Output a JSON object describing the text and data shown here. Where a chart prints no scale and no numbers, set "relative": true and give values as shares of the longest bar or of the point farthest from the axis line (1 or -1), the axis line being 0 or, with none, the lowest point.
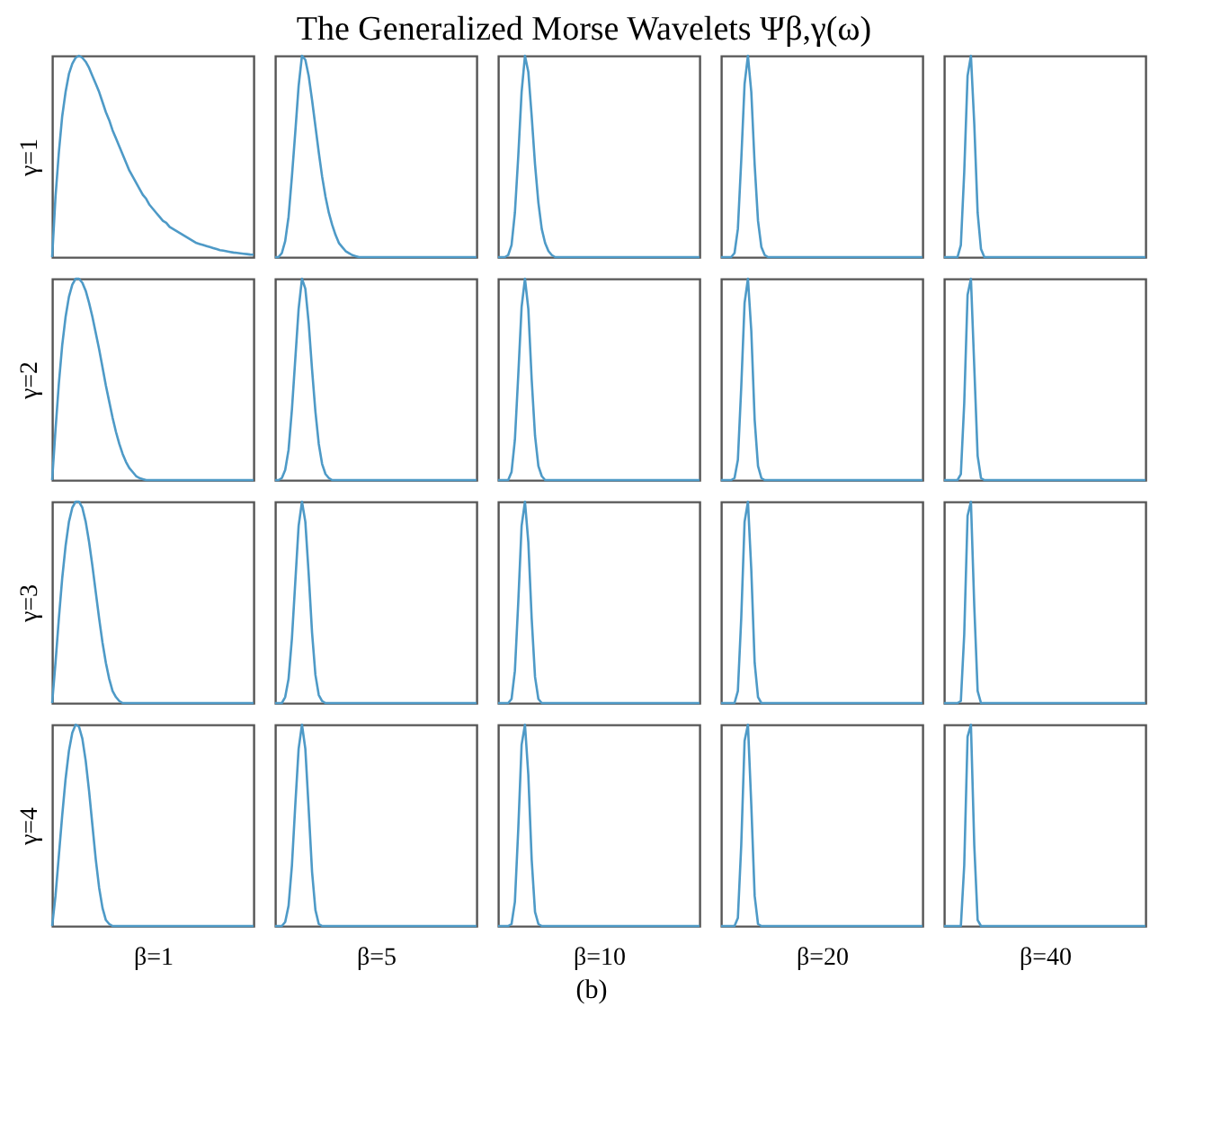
{
  "chart_data": [
    {
      "type": "line",
      "ylabel": "γ=1",
      "relative": true,
      "tick_labels": false,
      "color": "#4e9ac7",
      "categories": [
        null,
        null,
        null,
        null,
        null,
        null,
        null,
        null,
        null,
        null,
        null,
        null,
        null,
        null,
        null,
        null,
        null,
        null,
        null,
        null,
        null,
        null,
        null,
        null,
        null,
        null,
        null,
        null,
        null,
        null,
        null,
        null,
        null,
        null,
        null,
        null,
        null,
        null,
        null,
        null,
        null,
        null,
        null,
        null,
        null,
        null,
        null,
        null,
        null,
        null,
        null,
        null,
        null,
        null,
        null,
        null,
        null,
        null,
        null,
        null,
        null
      ],
      "values": [
        0,
        0.3,
        0.52,
        0.7,
        0.82,
        0.91,
        0.96,
        0.99,
        1,
        0.99,
        0.97,
        0.94,
        0.9,
        0.86,
        0.82,
        0.77,
        0.72,
        0.68,
        0.63,
        0.59,
        0.55,
        0.51,
        0.47,
        0.43,
        0.4,
        0.37,
        0.34,
        0.31,
        0.29,
        0.26,
        0.24,
        0.22,
        0.2,
        0.18,
        0.17,
        0.15,
        0.14,
        0.13,
        0.12,
        0.11,
        0.1,
        0.09,
        0.08,
        0.07,
        0.065,
        0.06,
        0.055,
        0.05,
        0.045,
        0.04,
        0.035,
        0.032,
        0.029,
        0.026,
        0.023,
        0.021,
        0.019,
        0.017,
        0.015,
        0.013,
        0.012
      ]
    },
    {
      "type": "line",
      "relative": true,
      "tick_labels": false,
      "color": "#4e9ac7",
      "categories": [
        null,
        null,
        null,
        null,
        null,
        null,
        null,
        null,
        null,
        null,
        null,
        null,
        null,
        null,
        null,
        null,
        null,
        null,
        null,
        null,
        null,
        null,
        null,
        null,
        null,
        null,
        null,
        null,
        null,
        null,
        null,
        null,
        null,
        null,
        null,
        null,
        null,
        null,
        null,
        null,
        null,
        null,
        null,
        null,
        null,
        null,
        null,
        null,
        null,
        null,
        null,
        null,
        null,
        null,
        null,
        null,
        null,
        null,
        null,
        null,
        null
      ],
      "values": [
        0,
        0,
        0.02,
        0.08,
        0.2,
        0.4,
        0.62,
        0.85,
        1,
        0.98,
        0.9,
        0.78,
        0.65,
        0.52,
        0.4,
        0.3,
        0.22,
        0.16,
        0.11,
        0.07,
        0.05,
        0.03,
        0.02,
        0.01,
        0.005,
        0,
        0,
        0,
        0,
        0,
        0,
        0,
        0,
        0,
        0,
        0,
        0,
        0,
        0,
        0,
        0,
        0,
        0,
        0,
        0,
        0,
        0,
        0,
        0,
        0,
        0,
        0,
        0,
        0,
        0,
        0,
        0,
        0,
        0,
        0,
        0
      ]
    },
    {
      "type": "line",
      "title": "The Generalized Morse Wavelets Ψβ,γ(ω)",
      "relative": true,
      "tick_labels": false,
      "color": "#4e9ac7",
      "categories": [
        null,
        null,
        null,
        null,
        null,
        null,
        null,
        null,
        null,
        null,
        null,
        null,
        null,
        null,
        null,
        null,
        null,
        null,
        null,
        null,
        null,
        null,
        null,
        null,
        null,
        null,
        null,
        null,
        null,
        null,
        null,
        null,
        null,
        null,
        null,
        null,
        null,
        null,
        null,
        null,
        null,
        null,
        null,
        null,
        null,
        null,
        null,
        null,
        null,
        null,
        null,
        null,
        null,
        null,
        null,
        null,
        null,
        null,
        null,
        null,
        null
      ],
      "values": [
        0,
        0,
        0,
        0.01,
        0.06,
        0.22,
        0.5,
        0.82,
        1,
        0.92,
        0.7,
        0.46,
        0.27,
        0.14,
        0.07,
        0.03,
        0.01,
        0,
        0,
        0,
        0,
        0,
        0,
        0,
        0,
        0,
        0,
        0,
        0,
        0,
        0,
        0,
        0,
        0,
        0,
        0,
        0,
        0,
        0,
        0,
        0,
        0,
        0,
        0,
        0,
        0,
        0,
        0,
        0,
        0,
        0,
        0,
        0,
        0,
        0,
        0,
        0,
        0,
        0,
        0,
        0
      ]
    },
    {
      "type": "line",
      "relative": true,
      "tick_labels": false,
      "color": "#4e9ac7",
      "categories": [
        null,
        null,
        null,
        null,
        null,
        null,
        null,
        null,
        null,
        null,
        null,
        null,
        null,
        null,
        null,
        null,
        null,
        null,
        null,
        null,
        null,
        null,
        null,
        null,
        null,
        null,
        null,
        null,
        null,
        null,
        null,
        null,
        null,
        null,
        null,
        null,
        null,
        null,
        null,
        null,
        null,
        null,
        null,
        null,
        null,
        null,
        null,
        null,
        null,
        null,
        null,
        null,
        null,
        null,
        null,
        null,
        null,
        null,
        null,
        null,
        null
      ],
      "values": [
        0,
        0,
        0,
        0,
        0.02,
        0.14,
        0.48,
        0.86,
        1,
        0.82,
        0.46,
        0.18,
        0.05,
        0.01,
        0,
        0,
        0,
        0,
        0,
        0,
        0,
        0,
        0,
        0,
        0,
        0,
        0,
        0,
        0,
        0,
        0,
        0,
        0,
        0,
        0,
        0,
        0,
        0,
        0,
        0,
        0,
        0,
        0,
        0,
        0,
        0,
        0,
        0,
        0,
        0,
        0,
        0,
        0,
        0,
        0,
        0,
        0,
        0,
        0,
        0,
        0
      ]
    },
    {
      "type": "line",
      "relative": true,
      "tick_labels": false,
      "color": "#4e9ac7",
      "categories": [
        null,
        null,
        null,
        null,
        null,
        null,
        null,
        null,
        null,
        null,
        null,
        null,
        null,
        null,
        null,
        null,
        null,
        null,
        null,
        null,
        null,
        null,
        null,
        null,
        null,
        null,
        null,
        null,
        null,
        null,
        null,
        null,
        null,
        null,
        null,
        null,
        null,
        null,
        null,
        null,
        null,
        null,
        null,
        null,
        null,
        null,
        null,
        null,
        null,
        null,
        null,
        null,
        null,
        null,
        null,
        null,
        null,
        null,
        null,
        null,
        null
      ],
      "values": [
        0,
        0,
        0,
        0,
        0,
        0.06,
        0.42,
        0.9,
        1,
        0.66,
        0.22,
        0.04,
        0,
        0,
        0,
        0,
        0,
        0,
        0,
        0,
        0,
        0,
        0,
        0,
        0,
        0,
        0,
        0,
        0,
        0,
        0,
        0,
        0,
        0,
        0,
        0,
        0,
        0,
        0,
        0,
        0,
        0,
        0,
        0,
        0,
        0,
        0,
        0,
        0,
        0,
        0,
        0,
        0,
        0,
        0,
        0,
        0,
        0,
        0,
        0,
        0
      ]
    },
    {
      "type": "line",
      "ylabel": "γ=2",
      "relative": true,
      "tick_labels": false,
      "color": "#4e9ac7",
      "categories": [
        null,
        null,
        null,
        null,
        null,
        null,
        null,
        null,
        null,
        null,
        null,
        null,
        null,
        null,
        null,
        null,
        null,
        null,
        null,
        null,
        null,
        null,
        null,
        null,
        null,
        null,
        null,
        null,
        null,
        null,
        null,
        null,
        null,
        null,
        null,
        null,
        null,
        null,
        null,
        null,
        null,
        null,
        null,
        null,
        null,
        null,
        null,
        null,
        null,
        null,
        null,
        null,
        null,
        null,
        null,
        null,
        null,
        null,
        null,
        null,
        null
      ],
      "values": [
        0,
        0.25,
        0.48,
        0.67,
        0.81,
        0.91,
        0.97,
        1,
        1,
        0.98,
        0.94,
        0.88,
        0.81,
        0.73,
        0.65,
        0.56,
        0.47,
        0.39,
        0.31,
        0.24,
        0.18,
        0.13,
        0.09,
        0.06,
        0.04,
        0.02,
        0.01,
        0.005,
        0,
        0,
        0,
        0,
        0,
        0,
        0,
        0,
        0,
        0,
        0,
        0,
        0,
        0,
        0,
        0,
        0,
        0,
        0,
        0,
        0,
        0,
        0,
        0,
        0,
        0,
        0,
        0,
        0,
        0,
        0,
        0,
        0
      ]
    },
    {
      "type": "line",
      "relative": true,
      "tick_labels": false,
      "color": "#4e9ac7",
      "categories": [
        null,
        null,
        null,
        null,
        null,
        null,
        null,
        null,
        null,
        null,
        null,
        null,
        null,
        null,
        null,
        null,
        null,
        null,
        null,
        null,
        null,
        null,
        null,
        null,
        null,
        null,
        null,
        null,
        null,
        null,
        null,
        null,
        null,
        null,
        null,
        null,
        null,
        null,
        null,
        null,
        null,
        null,
        null,
        null,
        null,
        null,
        null,
        null,
        null,
        null,
        null,
        null,
        null,
        null,
        null,
        null,
        null,
        null,
        null,
        null,
        null
      ],
      "values": [
        0,
        0,
        0.01,
        0.05,
        0.15,
        0.35,
        0.6,
        0.85,
        1,
        0.95,
        0.78,
        0.55,
        0.34,
        0.18,
        0.08,
        0.03,
        0.01,
        0,
        0,
        0,
        0,
        0,
        0,
        0,
        0,
        0,
        0,
        0,
        0,
        0,
        0,
        0,
        0,
        0,
        0,
        0,
        0,
        0,
        0,
        0,
        0,
        0,
        0,
        0,
        0,
        0,
        0,
        0,
        0,
        0,
        0,
        0,
        0,
        0,
        0,
        0,
        0,
        0,
        0,
        0,
        0
      ]
    },
    {
      "type": "line",
      "relative": true,
      "tick_labels": false,
      "color": "#4e9ac7",
      "categories": [
        null,
        null,
        null,
        null,
        null,
        null,
        null,
        null,
        null,
        null,
        null,
        null,
        null,
        null,
        null,
        null,
        null,
        null,
        null,
        null,
        null,
        null,
        null,
        null,
        null,
        null,
        null,
        null,
        null,
        null,
        null,
        null,
        null,
        null,
        null,
        null,
        null,
        null,
        null,
        null,
        null,
        null,
        null,
        null,
        null,
        null,
        null,
        null,
        null,
        null,
        null,
        null,
        null,
        null,
        null,
        null,
        null,
        null,
        null,
        null,
        null
      ],
      "values": [
        0,
        0,
        0,
        0,
        0.04,
        0.2,
        0.52,
        0.86,
        1,
        0.85,
        0.5,
        0.22,
        0.07,
        0.02,
        0,
        0,
        0,
        0,
        0,
        0,
        0,
        0,
        0,
        0,
        0,
        0,
        0,
        0,
        0,
        0,
        0,
        0,
        0,
        0,
        0,
        0,
        0,
        0,
        0,
        0,
        0,
        0,
        0,
        0,
        0,
        0,
        0,
        0,
        0,
        0,
        0,
        0,
        0,
        0,
        0,
        0,
        0,
        0,
        0,
        0,
        0
      ]
    },
    {
      "type": "line",
      "relative": true,
      "tick_labels": false,
      "color": "#4e9ac7",
      "categories": [
        null,
        null,
        null,
        null,
        null,
        null,
        null,
        null,
        null,
        null,
        null,
        null,
        null,
        null,
        null,
        null,
        null,
        null,
        null,
        null,
        null,
        null,
        null,
        null,
        null,
        null,
        null,
        null,
        null,
        null,
        null,
        null,
        null,
        null,
        null,
        null,
        null,
        null,
        null,
        null,
        null,
        null,
        null,
        null,
        null,
        null,
        null,
        null,
        null,
        null,
        null,
        null,
        null,
        null,
        null,
        null,
        null,
        null,
        null,
        null,
        null
      ],
      "values": [
        0,
        0,
        0,
        0,
        0.01,
        0.1,
        0.46,
        0.88,
        1,
        0.74,
        0.3,
        0.07,
        0.01,
        0,
        0,
        0,
        0,
        0,
        0,
        0,
        0,
        0,
        0,
        0,
        0,
        0,
        0,
        0,
        0,
        0,
        0,
        0,
        0,
        0,
        0,
        0,
        0,
        0,
        0,
        0,
        0,
        0,
        0,
        0,
        0,
        0,
        0,
        0,
        0,
        0,
        0,
        0,
        0,
        0,
        0,
        0,
        0,
        0,
        0,
        0,
        0
      ]
    },
    {
      "type": "line",
      "relative": true,
      "tick_labels": false,
      "color": "#4e9ac7",
      "categories": [
        null,
        null,
        null,
        null,
        null,
        null,
        null,
        null,
        null,
        null,
        null,
        null,
        null,
        null,
        null,
        null,
        null,
        null,
        null,
        null,
        null,
        null,
        null,
        null,
        null,
        null,
        null,
        null,
        null,
        null,
        null,
        null,
        null,
        null,
        null,
        null,
        null,
        null,
        null,
        null,
        null,
        null,
        null,
        null,
        null,
        null,
        null,
        null,
        null,
        null,
        null,
        null,
        null,
        null,
        null,
        null,
        null,
        null,
        null,
        null,
        null
      ],
      "values": [
        0,
        0,
        0,
        0,
        0,
        0.03,
        0.38,
        0.92,
        1,
        0.56,
        0.12,
        0.01,
        0,
        0,
        0,
        0,
        0,
        0,
        0,
        0,
        0,
        0,
        0,
        0,
        0,
        0,
        0,
        0,
        0,
        0,
        0,
        0,
        0,
        0,
        0,
        0,
        0,
        0,
        0,
        0,
        0,
        0,
        0,
        0,
        0,
        0,
        0,
        0,
        0,
        0,
        0,
        0,
        0,
        0,
        0,
        0,
        0,
        0,
        0,
        0,
        0
      ]
    },
    {
      "type": "line",
      "ylabel": "γ=3",
      "relative": true,
      "tick_labels": false,
      "color": "#4e9ac7",
      "categories": [
        null,
        null,
        null,
        null,
        null,
        null,
        null,
        null,
        null,
        null,
        null,
        null,
        null,
        null,
        null,
        null,
        null,
        null,
        null,
        null,
        null,
        null,
        null,
        null,
        null,
        null,
        null,
        null,
        null,
        null,
        null,
        null,
        null,
        null,
        null,
        null,
        null,
        null,
        null,
        null,
        null,
        null,
        null,
        null,
        null,
        null,
        null,
        null,
        null,
        null,
        null,
        null,
        null,
        null,
        null,
        null,
        null,
        null,
        null,
        null,
        null
      ],
      "values": [
        0,
        0.2,
        0.42,
        0.62,
        0.78,
        0.9,
        0.97,
        1,
        1,
        0.97,
        0.9,
        0.8,
        0.68,
        0.55,
        0.42,
        0.3,
        0.2,
        0.12,
        0.06,
        0.03,
        0.01,
        0,
        0,
        0,
        0,
        0,
        0,
        0,
        0,
        0,
        0,
        0,
        0,
        0,
        0,
        0,
        0,
        0,
        0,
        0,
        0,
        0,
        0,
        0,
        0,
        0,
        0,
        0,
        0,
        0,
        0,
        0,
        0,
        0,
        0,
        0,
        0,
        0,
        0,
        0,
        0
      ]
    },
    {
      "type": "line",
      "relative": true,
      "tick_labels": false,
      "color": "#4e9ac7",
      "categories": [
        null,
        null,
        null,
        null,
        null,
        null,
        null,
        null,
        null,
        null,
        null,
        null,
        null,
        null,
        null,
        null,
        null,
        null,
        null,
        null,
        null,
        null,
        null,
        null,
        null,
        null,
        null,
        null,
        null,
        null,
        null,
        null,
        null,
        null,
        null,
        null,
        null,
        null,
        null,
        null,
        null,
        null,
        null,
        null,
        null,
        null,
        null,
        null,
        null,
        null,
        null,
        null,
        null,
        null,
        null,
        null,
        null,
        null,
        null,
        null,
        null
      ],
      "values": [
        0,
        0,
        0,
        0.03,
        0.12,
        0.32,
        0.6,
        0.88,
        1,
        0.9,
        0.64,
        0.35,
        0.14,
        0.04,
        0.01,
        0,
        0,
        0,
        0,
        0,
        0,
        0,
        0,
        0,
        0,
        0,
        0,
        0,
        0,
        0,
        0,
        0,
        0,
        0,
        0,
        0,
        0,
        0,
        0,
        0,
        0,
        0,
        0,
        0,
        0,
        0,
        0,
        0,
        0,
        0,
        0,
        0,
        0,
        0,
        0,
        0,
        0,
        0,
        0,
        0,
        0
      ]
    },
    {
      "type": "line",
      "relative": true,
      "tick_labels": false,
      "color": "#4e9ac7",
      "categories": [
        null,
        null,
        null,
        null,
        null,
        null,
        null,
        null,
        null,
        null,
        null,
        null,
        null,
        null,
        null,
        null,
        null,
        null,
        null,
        null,
        null,
        null,
        null,
        null,
        null,
        null,
        null,
        null,
        null,
        null,
        null,
        null,
        null,
        null,
        null,
        null,
        null,
        null,
        null,
        null,
        null,
        null,
        null,
        null,
        null,
        null,
        null,
        null,
        null,
        null,
        null,
        null,
        null,
        null,
        null,
        null,
        null,
        null,
        null,
        null,
        null
      ],
      "values": [
        0,
        0,
        0,
        0,
        0.02,
        0.16,
        0.5,
        0.88,
        1,
        0.8,
        0.42,
        0.13,
        0.02,
        0,
        0,
        0,
        0,
        0,
        0,
        0,
        0,
        0,
        0,
        0,
        0,
        0,
        0,
        0,
        0,
        0,
        0,
        0,
        0,
        0,
        0,
        0,
        0,
        0,
        0,
        0,
        0,
        0,
        0,
        0,
        0,
        0,
        0,
        0,
        0,
        0,
        0,
        0,
        0,
        0,
        0,
        0,
        0,
        0,
        0,
        0,
        0
      ]
    },
    {
      "type": "line",
      "relative": true,
      "tick_labels": false,
      "color": "#4e9ac7",
      "categories": [
        null,
        null,
        null,
        null,
        null,
        null,
        null,
        null,
        null,
        null,
        null,
        null,
        null,
        null,
        null,
        null,
        null,
        null,
        null,
        null,
        null,
        null,
        null,
        null,
        null,
        null,
        null,
        null,
        null,
        null,
        null,
        null,
        null,
        null,
        null,
        null,
        null,
        null,
        null,
        null,
        null,
        null,
        null,
        null,
        null,
        null,
        null,
        null,
        null,
        null,
        null,
        null,
        null,
        null,
        null,
        null,
        null,
        null,
        null,
        null,
        null
      ],
      "values": [
        0,
        0,
        0,
        0,
        0,
        0.06,
        0.42,
        0.9,
        1,
        0.66,
        0.2,
        0.03,
        0,
        0,
        0,
        0,
        0,
        0,
        0,
        0,
        0,
        0,
        0,
        0,
        0,
        0,
        0,
        0,
        0,
        0,
        0,
        0,
        0,
        0,
        0,
        0,
        0,
        0,
        0,
        0,
        0,
        0,
        0,
        0,
        0,
        0,
        0,
        0,
        0,
        0,
        0,
        0,
        0,
        0,
        0,
        0,
        0,
        0,
        0,
        0,
        0
      ]
    },
    {
      "type": "line",
      "relative": true,
      "tick_labels": false,
      "color": "#4e9ac7",
      "categories": [
        null,
        null,
        null,
        null,
        null,
        null,
        null,
        null,
        null,
        null,
        null,
        null,
        null,
        null,
        null,
        null,
        null,
        null,
        null,
        null,
        null,
        null,
        null,
        null,
        null,
        null,
        null,
        null,
        null,
        null,
        null,
        null,
        null,
        null,
        null,
        null,
        null,
        null,
        null,
        null,
        null,
        null,
        null,
        null,
        null,
        null,
        null,
        null,
        null,
        null,
        null,
        null,
        null,
        null,
        null,
        null,
        null,
        null,
        null,
        null,
        null
      ],
      "values": [
        0,
        0,
        0,
        0,
        0,
        0.01,
        0.34,
        0.93,
        1,
        0.48,
        0.06,
        0,
        0,
        0,
        0,
        0,
        0,
        0,
        0,
        0,
        0,
        0,
        0,
        0,
        0,
        0,
        0,
        0,
        0,
        0,
        0,
        0,
        0,
        0,
        0,
        0,
        0,
        0,
        0,
        0,
        0,
        0,
        0,
        0,
        0,
        0,
        0,
        0,
        0,
        0,
        0,
        0,
        0,
        0,
        0,
        0,
        0,
        0,
        0,
        0,
        0
      ]
    },
    {
      "type": "line",
      "ylabel": "γ=4",
      "xlabel": "β=1",
      "relative": true,
      "tick_labels": false,
      "color": "#4e9ac7",
      "categories": [
        null,
        null,
        null,
        null,
        null,
        null,
        null,
        null,
        null,
        null,
        null,
        null,
        null,
        null,
        null,
        null,
        null,
        null,
        null,
        null,
        null,
        null,
        null,
        null,
        null,
        null,
        null,
        null,
        null,
        null,
        null,
        null,
        null,
        null,
        null,
        null,
        null,
        null,
        null,
        null,
        null,
        null,
        null,
        null,
        null,
        null,
        null,
        null,
        null,
        null,
        null,
        null,
        null,
        null,
        null,
        null,
        null,
        null,
        null,
        null,
        null
      ],
      "values": [
        0,
        0.15,
        0.35,
        0.55,
        0.73,
        0.87,
        0.96,
        1,
        0.99,
        0.93,
        0.82,
        0.67,
        0.5,
        0.33,
        0.19,
        0.09,
        0.03,
        0.01,
        0,
        0,
        0,
        0,
        0,
        0,
        0,
        0,
        0,
        0,
        0,
        0,
        0,
        0,
        0,
        0,
        0,
        0,
        0,
        0,
        0,
        0,
        0,
        0,
        0,
        0,
        0,
        0,
        0,
        0,
        0,
        0,
        0,
        0,
        0,
        0,
        0,
        0,
        0,
        0,
        0,
        0,
        0
      ]
    },
    {
      "type": "line",
      "xlabel": "β=5",
      "relative": true,
      "tick_labels": false,
      "color": "#4e9ac7",
      "categories": [
        null,
        null,
        null,
        null,
        null,
        null,
        null,
        null,
        null,
        null,
        null,
        null,
        null,
        null,
        null,
        null,
        null,
        null,
        null,
        null,
        null,
        null,
        null,
        null,
        null,
        null,
        null,
        null,
        null,
        null,
        null,
        null,
        null,
        null,
        null,
        null,
        null,
        null,
        null,
        null,
        null,
        null,
        null,
        null,
        null,
        null,
        null,
        null,
        null,
        null,
        null,
        null,
        null,
        null,
        null,
        null,
        null,
        null,
        null,
        null,
        null
      ],
      "values": [
        0,
        0,
        0,
        0.02,
        0.1,
        0.3,
        0.6,
        0.88,
        1,
        0.88,
        0.58,
        0.27,
        0.08,
        0.01,
        0,
        0,
        0,
        0,
        0,
        0,
        0,
        0,
        0,
        0,
        0,
        0,
        0,
        0,
        0,
        0,
        0,
        0,
        0,
        0,
        0,
        0,
        0,
        0,
        0,
        0,
        0,
        0,
        0,
        0,
        0,
        0,
        0,
        0,
        0,
        0,
        0,
        0,
        0,
        0,
        0,
        0,
        0,
        0,
        0,
        0,
        0
      ]
    },
    {
      "type": "line",
      "xlabel": "β=10",
      "relative": true,
      "tick_labels": false,
      "color": "#4e9ac7",
      "categories": [
        null,
        null,
        null,
        null,
        null,
        null,
        null,
        null,
        null,
        null,
        null,
        null,
        null,
        null,
        null,
        null,
        null,
        null,
        null,
        null,
        null,
        null,
        null,
        null,
        null,
        null,
        null,
        null,
        null,
        null,
        null,
        null,
        null,
        null,
        null,
        null,
        null,
        null,
        null,
        null,
        null,
        null,
        null,
        null,
        null,
        null,
        null,
        null,
        null,
        null,
        null,
        null,
        null,
        null,
        null,
        null,
        null,
        null,
        null,
        null,
        null
      ],
      "values": [
        0,
        0,
        0,
        0,
        0.01,
        0.12,
        0.48,
        0.9,
        1,
        0.75,
        0.33,
        0.07,
        0.01,
        0,
        0,
        0,
        0,
        0,
        0,
        0,
        0,
        0,
        0,
        0,
        0,
        0,
        0,
        0,
        0,
        0,
        0,
        0,
        0,
        0,
        0,
        0,
        0,
        0,
        0,
        0,
        0,
        0,
        0,
        0,
        0,
        0,
        0,
        0,
        0,
        0,
        0,
        0,
        0,
        0,
        0,
        0,
        0,
        0,
        0,
        0,
        0
      ]
    },
    {
      "type": "line",
      "xlabel": "β=20",
      "relative": true,
      "tick_labels": false,
      "color": "#4e9ac7",
      "categories": [
        null,
        null,
        null,
        null,
        null,
        null,
        null,
        null,
        null,
        null,
        null,
        null,
        null,
        null,
        null,
        null,
        null,
        null,
        null,
        null,
        null,
        null,
        null,
        null,
        null,
        null,
        null,
        null,
        null,
        null,
        null,
        null,
        null,
        null,
        null,
        null,
        null,
        null,
        null,
        null,
        null,
        null,
        null,
        null,
        null,
        null,
        null,
        null,
        null,
        null,
        null,
        null,
        null,
        null,
        null,
        null,
        null,
        null,
        null,
        null,
        null
      ],
      "values": [
        0,
        0,
        0,
        0,
        0,
        0.04,
        0.4,
        0.92,
        1,
        0.6,
        0.15,
        0.01,
        0,
        0,
        0,
        0,
        0,
        0,
        0,
        0,
        0,
        0,
        0,
        0,
        0,
        0,
        0,
        0,
        0,
        0,
        0,
        0,
        0,
        0,
        0,
        0,
        0,
        0,
        0,
        0,
        0,
        0,
        0,
        0,
        0,
        0,
        0,
        0,
        0,
        0,
        0,
        0,
        0,
        0,
        0,
        0,
        0,
        0,
        0,
        0,
        0
      ]
    },
    {
      "type": "line",
      "xlabel": "β=40",
      "annotations": [
        "(b)"
      ],
      "relative": true,
      "tick_labels": false,
      "color": "#4e9ac7",
      "categories": [
        null,
        null,
        null,
        null,
        null,
        null,
        null,
        null,
        null,
        null,
        null,
        null,
        null,
        null,
        null,
        null,
        null,
        null,
        null,
        null,
        null,
        null,
        null,
        null,
        null,
        null,
        null,
        null,
        null,
        null,
        null,
        null,
        null,
        null,
        null,
        null,
        null,
        null,
        null,
        null,
        null,
        null,
        null,
        null,
        null,
        null,
        null,
        null,
        null,
        null,
        null,
        null,
        null,
        null,
        null,
        null,
        null,
        null,
        null,
        null,
        null
      ],
      "values": [
        0,
        0,
        0,
        0,
        0,
        0,
        0.3,
        0.94,
        1,
        0.4,
        0.03,
        0,
        0,
        0,
        0,
        0,
        0,
        0,
        0,
        0,
        0,
        0,
        0,
        0,
        0,
        0,
        0,
        0,
        0,
        0,
        0,
        0,
        0,
        0,
        0,
        0,
        0,
        0,
        0,
        0,
        0,
        0,
        0,
        0,
        0,
        0,
        0,
        0,
        0,
        0,
        0,
        0,
        0,
        0,
        0,
        0,
        0,
        0,
        0,
        0,
        0
      ]
    }
  ]
}
